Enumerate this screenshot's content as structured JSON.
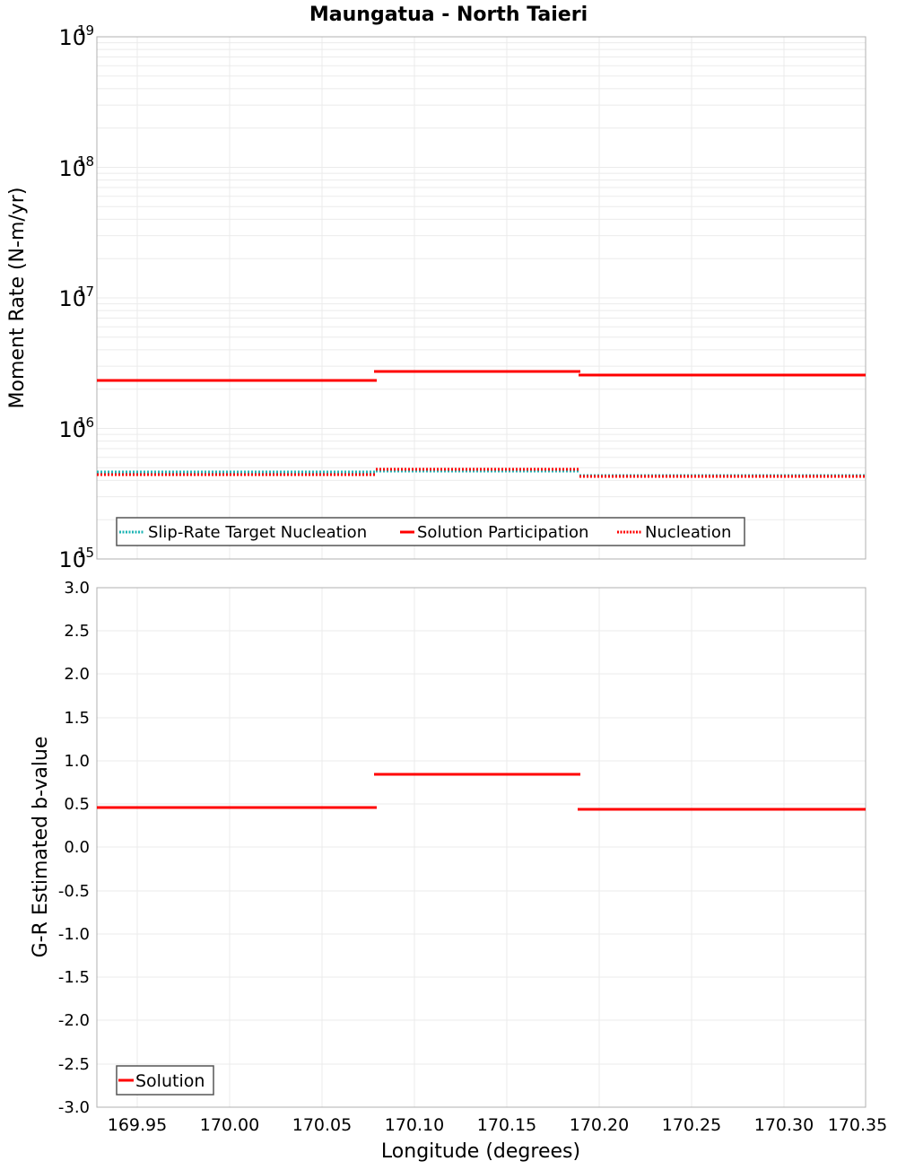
{
  "title": "Maungatua - North Taieri",
  "chart_data": [
    {
      "type": "line",
      "subtype": "step",
      "title": "Maungatua - North Taieri",
      "xlabel": "Longitude (degrees)",
      "ylabel": "Moment Rate (N-m/yr)",
      "yscale": "log",
      "ylim": [
        1000000000000000.0,
        1e+19
      ],
      "xlim": [
        169.928,
        170.344
      ],
      "y_ticks": [
        "10^15",
        "10^16",
        "10^17",
        "10^18",
        "10^19"
      ],
      "x_breaks": [
        169.928,
        170.079,
        170.189,
        170.344
      ],
      "grid": true,
      "legend_position": "lower-left",
      "series": [
        {
          "name": "Slip-Rate Target Nucleation",
          "style": "dotted",
          "color": "#1fb5b5",
          "values": [
            4600000000000000.0,
            4600000000000000.0,
            4300000000000000.0
          ]
        },
        {
          "name": "Solution Participation",
          "style": "solid",
          "color": "#ff0000",
          "values": [
            2.33e+16,
            2.74e+16,
            2.56e+16
          ]
        },
        {
          "name": "Nucleation",
          "style": "dotted",
          "color": "#ff0000",
          "values": [
            4400000000000000.0,
            4800000000000000.0,
            4200000000000000.0
          ]
        }
      ]
    },
    {
      "type": "line",
      "subtype": "step",
      "xlabel": "Longitude (degrees)",
      "ylabel": "G-R Estimated b-value",
      "ylim": [
        -3.0,
        3.0
      ],
      "xlim": [
        169.928,
        170.344
      ],
      "x_ticks": [
        "169.95",
        "170.00",
        "170.05",
        "170.10",
        "170.15",
        "170.20",
        "170.25",
        "170.30",
        "170.35"
      ],
      "y_ticks": [
        "3.0",
        "2.5",
        "2.0",
        "1.5",
        "1.0",
        "0.5",
        "0.0",
        "-0.5",
        "-1.0",
        "-1.5",
        "-2.0",
        "-2.5",
        "-3.0"
      ],
      "x_breaks": [
        169.928,
        170.079,
        170.189,
        170.344
      ],
      "grid": true,
      "legend_position": "lower-left",
      "series": [
        {
          "name": "Solution",
          "style": "solid",
          "color": "#ff0000",
          "values": [
            0.46,
            0.84,
            0.44
          ]
        }
      ]
    }
  ],
  "top": {
    "ylabel": "Moment Rate (N-m/yr)",
    "yticks": [
      {
        "base": "10",
        "exp": "19"
      },
      {
        "base": "10",
        "exp": "18"
      },
      {
        "base": "10",
        "exp": "17"
      },
      {
        "base": "10",
        "exp": "16"
      },
      {
        "base": "10",
        "exp": "15"
      }
    ],
    "legend": [
      "Slip-Rate Target Nucleation",
      "Solution Participation",
      "Nucleation"
    ]
  },
  "bottom": {
    "ylabel": "G-R Estimated b-value",
    "yticks": [
      "3.0",
      "2.5",
      "2.0",
      "1.5",
      "1.0",
      "0.5",
      "0.0",
      "-0.5",
      "-1.0",
      "-1.5",
      "-2.0",
      "-2.5",
      "-3.0"
    ],
    "legend": [
      "Solution"
    ]
  },
  "xaxis": {
    "label": "Longitude (degrees)",
    "ticks": [
      "169.95",
      "170.00",
      "170.05",
      "170.10",
      "170.15",
      "170.20",
      "170.25",
      "170.30",
      "170.35"
    ]
  },
  "colors": {
    "red": "#ff0000",
    "cyan": "#1fb5b5",
    "grid": "#ebebeb",
    "frame": "#b0b0b0"
  }
}
